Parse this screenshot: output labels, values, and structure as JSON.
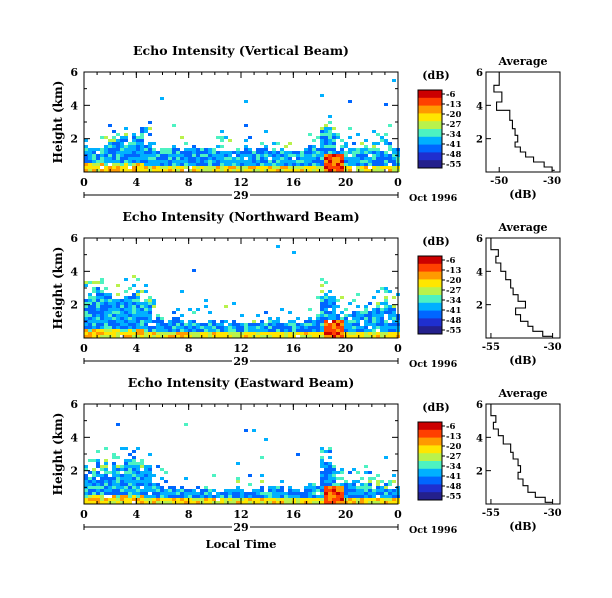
{
  "figure": {
    "month_label": "Oct 1996",
    "xaxis_label": "Local Time",
    "day_label": "29"
  },
  "panels": [
    {
      "title": "Echo Intensity (Vertical Beam)"
    },
    {
      "title": "Echo Intensity (Northward Beam)"
    },
    {
      "title": "Echo Intensity (Eastward Beam)"
    }
  ],
  "colorbar": {
    "unit": "(dB)",
    "ticks": [
      "-6",
      "-13",
      "-20",
      "-27",
      "-34",
      "-41",
      "-48",
      "-55"
    ],
    "colors": [
      "#cc0000",
      "#ff4000",
      "#ff9a00",
      "#ffe600",
      "#b9f24c",
      "#4df2c2",
      "#00b0ff",
      "#0066ff",
      "#1f2fcf",
      "#24208c"
    ]
  },
  "chart_data": [
    {
      "type": "heatmap",
      "title": "Echo Intensity (Vertical Beam)",
      "xlabel": "Local Time",
      "ylabel": "Height (km)",
      "xticks": [
        "0",
        "4",
        "8",
        "12",
        "16",
        "20",
        "0"
      ],
      "yticks": [
        "2",
        "4",
        "6"
      ],
      "xlim": [
        0,
        24
      ],
      "ylim": [
        0,
        6
      ],
      "colorbar": {
        "label": "(dB)",
        "range": [
          -55,
          -6
        ]
      },
      "layer_top_km": [
        1.6,
        1.6,
        1.8,
        1.9,
        1.8,
        1.5,
        1.5,
        1.5,
        1.5,
        1.5,
        1.5,
        1.5,
        1.5,
        1.5,
        1.5,
        1.5,
        1.5,
        1.6,
        2.6,
        1.5,
        1.5,
        1.5,
        1.5,
        1.6
      ]
    },
    {
      "type": "line",
      "title": "Average",
      "xlabel": "(dB)",
      "ylabel": "",
      "xticks": [
        "-50",
        "-30"
      ],
      "yticks": [
        "2",
        "4",
        "6"
      ],
      "xlim": [
        -55,
        -27
      ],
      "ylim": [
        0,
        6
      ],
      "x": [
        -50,
        -52,
        -49,
        -51,
        -46,
        -45,
        -44,
        -43,
        -44,
        -42,
        -40,
        -37,
        -33,
        -30,
        -29
      ],
      "y": [
        6,
        5.2,
        4.8,
        4.2,
        3.7,
        3.1,
        2.6,
        2.2,
        1.8,
        1.5,
        1.2,
        0.9,
        0.6,
        0.3,
        0.1
      ]
    },
    {
      "type": "heatmap",
      "title": "Echo Intensity (Northward Beam)",
      "xlabel": "Local Time",
      "ylabel": "Height (km)",
      "xticks": [
        "0",
        "4",
        "8",
        "12",
        "16",
        "20",
        "0"
      ],
      "yticks": [
        "2",
        "4",
        "6"
      ],
      "xlim": [
        0,
        24
      ],
      "ylim": [
        0,
        6
      ],
      "colorbar": {
        "label": "(dB)",
        "range": [
          -55,
          -6
        ]
      },
      "layer_top_km": [
        2.8,
        2.6,
        2.4,
        2.6,
        2.2,
        1.4,
        1.2,
        1.0,
        1.0,
        1.1,
        1.1,
        1.0,
        1.0,
        1.0,
        1.1,
        1.0,
        1.0,
        1.2,
        2.6,
        1.4,
        1.6,
        1.8,
        1.9,
        2.0
      ]
    },
    {
      "type": "line",
      "title": "Average",
      "xlabel": "(dB)",
      "ylabel": "",
      "xticks": [
        "-55",
        "-30"
      ],
      "yticks": [
        "2",
        "4",
        "6"
      ],
      "xlim": [
        -57,
        -27
      ],
      "ylim": [
        0,
        6
      ],
      "x": [
        -55,
        -52,
        -53,
        -51,
        -49,
        -47,
        -46,
        -44,
        -41,
        -45,
        -43,
        -40,
        -38,
        -34,
        -30
      ],
      "y": [
        6,
        5.3,
        4.9,
        4.5,
        4.0,
        3.5,
        3.0,
        2.6,
        2.2,
        1.8,
        1.4,
        1.0,
        0.7,
        0.4,
        0.1
      ]
    },
    {
      "type": "heatmap",
      "title": "Echo Intensity (Eastward Beam)",
      "xlabel": "Local Time",
      "ylabel": "Height (km)",
      "xticks": [
        "0",
        "4",
        "8",
        "12",
        "16",
        "20",
        "0"
      ],
      "yticks": [
        "2",
        "4",
        "6"
      ],
      "xlim": [
        0,
        24
      ],
      "ylim": [
        0,
        6
      ],
      "colorbar": {
        "label": "(dB)",
        "range": [
          -55,
          -6
        ]
      },
      "layer_top_km": [
        2.0,
        2.0,
        2.3,
        2.5,
        2.2,
        1.3,
        1.1,
        1.0,
        1.0,
        1.0,
        1.0,
        1.0,
        1.0,
        1.0,
        1.1,
        1.0,
        1.1,
        1.2,
        2.6,
        1.4,
        1.3,
        1.2,
        1.1,
        1.0
      ]
    },
    {
      "type": "line",
      "title": "Average",
      "xlabel": "(dB)",
      "ylabel": "",
      "xticks": [
        "-55",
        "-30"
      ],
      "yticks": [
        "2",
        "4",
        "6"
      ],
      "xlim": [
        -57,
        -27
      ],
      "ylim": [
        0,
        6
      ],
      "x": [
        -55,
        -53,
        -54,
        -52,
        -50,
        -47,
        -46,
        -44,
        -43,
        -44,
        -42,
        -40,
        -37,
        -33,
        -30
      ],
      "y": [
        6,
        5.3,
        4.9,
        4.5,
        4.1,
        3.6,
        3.1,
        2.7,
        2.3,
        1.9,
        1.5,
        1.1,
        0.7,
        0.4,
        0.1
      ]
    }
  ]
}
